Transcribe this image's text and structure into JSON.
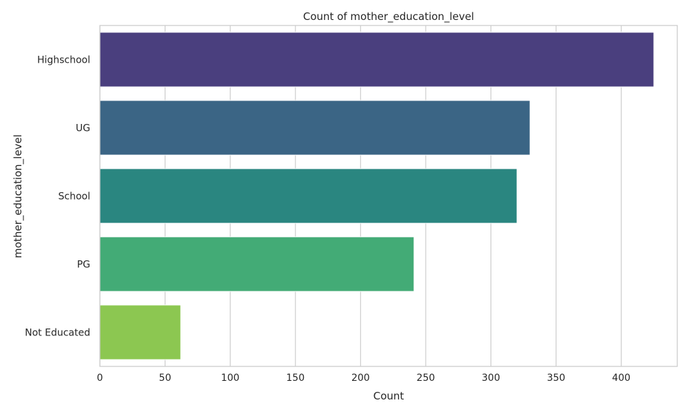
{
  "chart_data": {
    "type": "bar",
    "orientation": "horizontal",
    "title": "Count of mother_education_level",
    "xlabel": "Count",
    "ylabel": "mother_education_level",
    "categories": [
      "Highschool",
      "UG",
      "School",
      "PG",
      "Not Educated"
    ],
    "values": [
      425,
      330,
      320,
      241,
      62
    ],
    "colors": [
      "#4a3f7e",
      "#3b6585",
      "#2a8680",
      "#43ab76",
      "#8cc751"
    ],
    "xlim": [
      0,
      443
    ],
    "xticks": [
      0,
      50,
      100,
      150,
      200,
      250,
      300,
      350,
      400
    ],
    "grid": true
  }
}
